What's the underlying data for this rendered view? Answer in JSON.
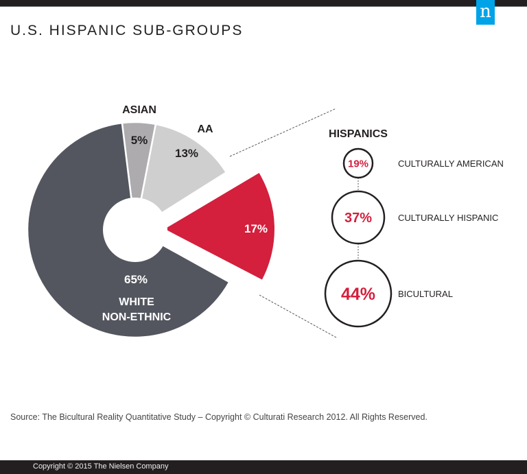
{
  "title": "U.S. HISPANIC SUB-GROUPS",
  "logo": "n",
  "source": "Source: The Bicultural Reality Quantitative Study – Copyright © Culturati Research 2012. All Rights Reserved.",
  "footer": "Copyright © 2015 The Nielsen Company",
  "chart_data": [
    {
      "type": "pie",
      "variant": "donut, exploded Hispanics slice",
      "slices": [
        {
          "label": "ASIAN",
          "value": 5,
          "value_label": "5%",
          "color": "#adabae"
        },
        {
          "label": "AA",
          "value": 13,
          "value_label": "13%",
          "color": "#cfcfcf"
        },
        {
          "label": "",
          "value": 17,
          "value_label": "17%",
          "color": "#d41f3d",
          "exploded": true
        },
        {
          "label": "WHITE NON-ETHNIC",
          "value": 65,
          "value_label": "65%",
          "color": "#53565f"
        }
      ]
    },
    {
      "type": "bubble",
      "title": "HISPANICS",
      "items": [
        {
          "label": "CULTURALLY AMERICAN",
          "value": 19,
          "value_label": "19%"
        },
        {
          "label": "CULTURALLY HISPANIC",
          "value": 37,
          "value_label": "37%"
        },
        {
          "label": "BICULTURAL",
          "value": 44,
          "value_label": "44%"
        }
      ],
      "value_color": "#d41f3d"
    }
  ]
}
